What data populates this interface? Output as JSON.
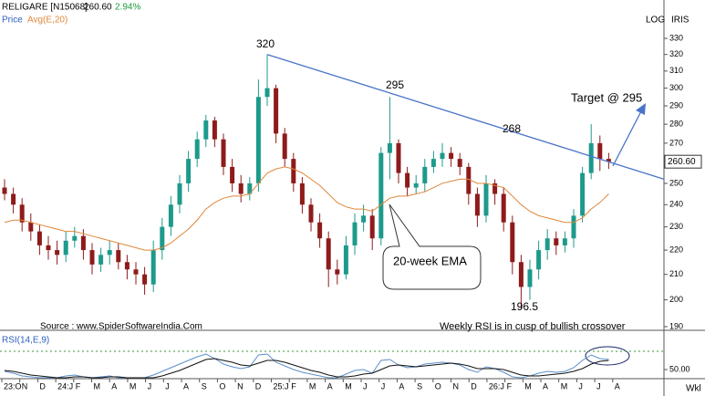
{
  "header": {
    "symbol": "RELIGARE [N15068]",
    "price": "260.60",
    "change": "2.94%",
    "price_legend": "Price",
    "avg_legend": "Avg(E,20)",
    "log": "LOG",
    "source_tag": "IRIS"
  },
  "chart_data": {
    "type": "candlestick",
    "log_scale": true,
    "months": [
      "23:O",
      "N",
      "D",
      "24:J",
      "F",
      "M",
      "A",
      "M",
      "J",
      "J",
      "A",
      "S",
      "O",
      "N",
      "D",
      "25:J",
      "F",
      "M",
      "A",
      "M",
      "J",
      "J",
      "A",
      "S",
      "O",
      "N",
      "D",
      "26:J",
      "F",
      "M",
      "A",
      "M",
      "J",
      "J",
      "A"
    ],
    "open": [
      248,
      245,
      240,
      232,
      228,
      222,
      220,
      218,
      224,
      226,
      220,
      214,
      218,
      220,
      215,
      212,
      210,
      206,
      220,
      230,
      240,
      250,
      262,
      272,
      282,
      272,
      258,
      250,
      245,
      250,
      295,
      300,
      275,
      262,
      250,
      240,
      232,
      225,
      212,
      210,
      222,
      232,
      235,
      225,
      265,
      270,
      255,
      248,
      250,
      258,
      262,
      265,
      262,
      258,
      245,
      235,
      250,
      245,
      232,
      215,
      205,
      212,
      220,
      225,
      222,
      225,
      235,
      255,
      270,
      262
    ],
    "high": [
      252,
      248,
      243,
      236,
      231,
      226,
      224,
      228,
      230,
      229,
      223,
      221,
      224,
      223,
      218,
      215,
      213,
      224,
      234,
      244,
      254,
      266,
      276,
      285,
      284,
      275,
      262,
      254,
      253,
      305,
      320,
      302,
      278,
      265,
      253,
      243,
      236,
      228,
      216,
      226,
      236,
      240,
      238,
      268,
      295,
      272,
      258,
      254,
      262,
      266,
      270,
      268,
      265,
      260,
      248,
      254,
      252,
      248,
      235,
      218,
      216,
      224,
      229,
      228,
      228,
      238,
      258,
      280,
      274,
      265
    ],
    "low": [
      242,
      236,
      228,
      224,
      218,
      216,
      214,
      215,
      221,
      216,
      210,
      211,
      214,
      212,
      208,
      206,
      202,
      203,
      216,
      226,
      236,
      246,
      258,
      268,
      268,
      254,
      246,
      241,
      242,
      246,
      290,
      270,
      258,
      246,
      236,
      228,
      221,
      205,
      206,
      208,
      218,
      228,
      220,
      222,
      252,
      250,
      244,
      245,
      246,
      255,
      258,
      258,
      254,
      240,
      230,
      232,
      240,
      228,
      210,
      196.5,
      200,
      208,
      216,
      218,
      219,
      221,
      232,
      252,
      256,
      257
    ],
    "close": [
      245,
      240,
      232,
      228,
      222,
      220,
      218,
      224,
      226,
      220,
      214,
      218,
      220,
      215,
      212,
      210,
      206,
      220,
      230,
      240,
      250,
      262,
      272,
      282,
      272,
      258,
      250,
      245,
      250,
      295,
      300,
      275,
      262,
      250,
      240,
      232,
      225,
      212,
      210,
      222,
      232,
      235,
      225,
      265,
      270,
      255,
      248,
      250,
      258,
      262,
      265,
      262,
      258,
      245,
      235,
      250,
      245,
      232,
      215,
      205,
      212,
      220,
      225,
      222,
      225,
      235,
      255,
      270,
      262,
      260.6
    ],
    "up_color": "#1d9a8c",
    "down_color": "#8e1b1b",
    "ema": {
      "name": "Avg(E,20)",
      "color": "#e0883a",
      "values": [
        232,
        233,
        233,
        232,
        231,
        230,
        229,
        228,
        228,
        227,
        226,
        225,
        224,
        223,
        222,
        221,
        220,
        220,
        221,
        223,
        226,
        229,
        233,
        238,
        241,
        243,
        244,
        244,
        245,
        250,
        255,
        257,
        258,
        257,
        255,
        252,
        249,
        245,
        241,
        239,
        238,
        238,
        237,
        240,
        243,
        244,
        244,
        245,
        246,
        248,
        250,
        251,
        252,
        252,
        250,
        250,
        249,
        248,
        244,
        240,
        237,
        235,
        234,
        233,
        232,
        232,
        234,
        238,
        241,
        245
      ]
    },
    "ylim": [
      189,
      346
    ],
    "yticks": [
      190,
      200,
      210,
      220,
      230,
      240,
      250,
      270,
      280,
      290,
      300,
      310,
      320,
      330
    ],
    "trendline": {
      "start": 320,
      "end": 252,
      "color": "#4a74c9"
    },
    "annotations": [
      "320",
      "295",
      "268",
      "196.5",
      "Target @ 295",
      "20-week EMA"
    ],
    "source": "Source : www.SpiderSoftwareIndia.Com",
    "note": "Weekly RSI is in cusp of bullish crossover",
    "frequency": "Wkl",
    "rsi": {
      "title": "RSI(14,E,9)",
      "ylim": [
        40,
        90
      ],
      "yticks": [
        {
          "value": 50,
          "label": "50.00"
        }
      ],
      "level": 70,
      "series": [
        {
          "name": "RSI",
          "color": "#5b8fc9",
          "values": [
            48,
            46,
            43,
            42,
            41,
            41,
            41,
            43,
            44,
            42,
            41,
            42,
            43,
            41,
            41,
            41,
            41,
            44,
            48,
            52,
            56,
            60,
            64,
            67,
            62,
            56,
            53,
            51,
            53,
            66,
            67,
            58,
            54,
            50,
            47,
            45,
            43,
            41,
            41,
            45,
            49,
            50,
            46,
            60,
            61,
            55,
            52,
            53,
            56,
            57,
            58,
            57,
            55,
            50,
            47,
            53,
            51,
            47,
            42,
            41,
            43,
            46,
            48,
            47,
            48,
            52,
            60,
            66,
            62,
            61
          ]
        },
        {
          "name": "Signal",
          "color": "#111111",
          "values": [
            49,
            48,
            46,
            44,
            43,
            42,
            41,
            41,
            42,
            42,
            41,
            41,
            42,
            42,
            41,
            41,
            41,
            41,
            43,
            46,
            49,
            53,
            57,
            61,
            62,
            60,
            58,
            55,
            54,
            57,
            60,
            60,
            58,
            55,
            52,
            49,
            47,
            44,
            42,
            42,
            43,
            45,
            46,
            50,
            54,
            55,
            54,
            53,
            54,
            55,
            56,
            57,
            56,
            54,
            51,
            51,
            51,
            50,
            47,
            44,
            43,
            43,
            44,
            45,
            46,
            48,
            51,
            56,
            59,
            60
          ]
        }
      ]
    }
  }
}
